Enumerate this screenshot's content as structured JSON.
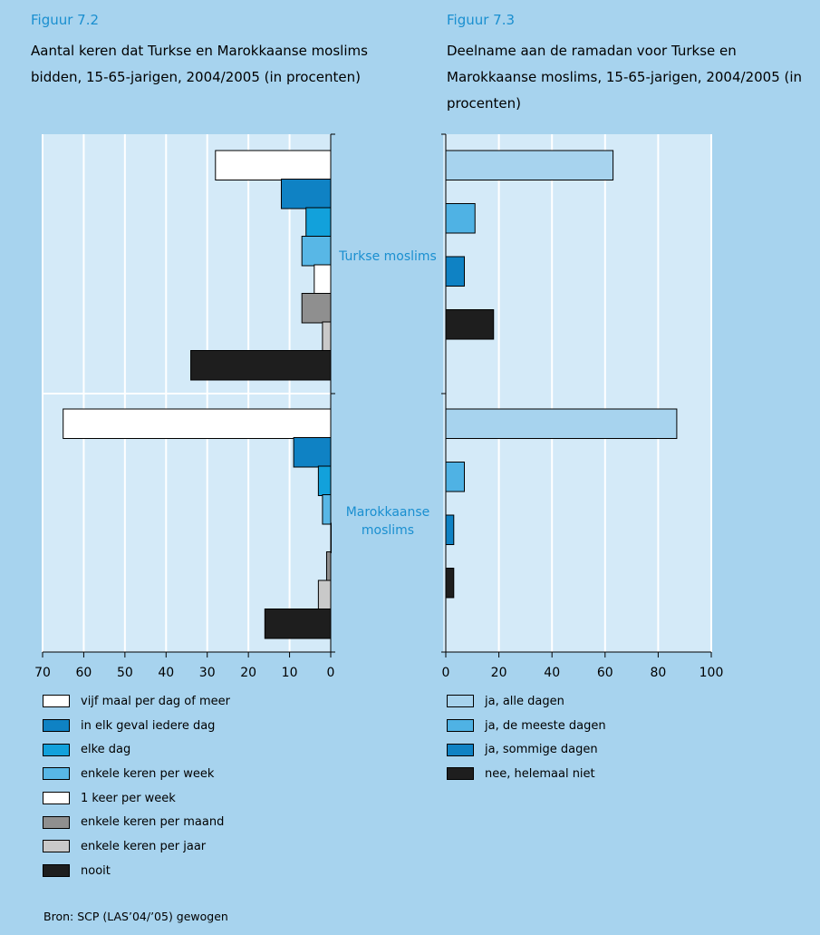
{
  "figure_left": {
    "label": "Figuur 7.2",
    "title": "Aantal keren dat Turkse en Marokkaanse moslims bidden, 15-65-jarigen, 2004/2005 (in procenten)"
  },
  "figure_right": {
    "label": "Figuur 7.3",
    "title": "Deelname aan de ramadan voor Turkse en Marokkaanse moslims, 15-65-jarigen, 2004/2005 (in procenten)"
  },
  "groups": {
    "turkish": "Turkse moslims",
    "moroccan": "Marokkaanse moslims"
  },
  "source": "Bron: SCP (LAS’04/’05) gewogen",
  "chart_data": [
    {
      "type": "bar",
      "orientation": "horizontal-reversed",
      "title": "Aantal keren dat Turkse en Marokkaanse moslims bidden, 15-65-jarigen, 2004/2005 (in procenten)",
      "categories": [
        "Turkse moslims",
        "Marokkaanse moslims"
      ],
      "xlim": [
        0,
        70
      ],
      "xticks": [
        70,
        60,
        50,
        40,
        30,
        20,
        10,
        0
      ],
      "grid": true,
      "legend_position": "bottom",
      "series": [
        {
          "name": "vijf maal per dag of meer",
          "color": "#ffffff",
          "values": [
            28,
            65
          ]
        },
        {
          "name": "in elk geval iedere dag",
          "color": "#0f82c4",
          "values": [
            12,
            9
          ]
        },
        {
          "name": "elke dag",
          "color": "#12a1db",
          "values": [
            6,
            3
          ]
        },
        {
          "name": "enkele keren per week",
          "color": "#58b7e6",
          "values": [
            7,
            2
          ]
        },
        {
          "name": "1 keer per week",
          "color": "#ffffff",
          "values": [
            4,
            0
          ]
        },
        {
          "name": "enkele keren per maand",
          "color": "#8f8f8f",
          "values": [
            7,
            1
          ]
        },
        {
          "name": "enkele keren per jaar",
          "color": "#c9c9c9",
          "values": [
            2,
            3
          ]
        },
        {
          "name": "nooit",
          "color": "#1e1e1e",
          "values": [
            34,
            16
          ]
        }
      ]
    },
    {
      "type": "bar",
      "orientation": "horizontal",
      "title": "Deelname aan de ramadan voor Turkse en Marokkaanse moslims, 15-65-jarigen, 2004/2005 (in procenten)",
      "categories": [
        "Turkse moslims",
        "Marokkaanse moslims"
      ],
      "xlim": [
        0,
        100
      ],
      "xticks": [
        0,
        20,
        40,
        60,
        80,
        100
      ],
      "grid": true,
      "legend_position": "bottom",
      "series": [
        {
          "name": "ja, alle dagen",
          "color": "#a7d3ee",
          "values": [
            63,
            87
          ]
        },
        {
          "name": "ja, de meeste dagen",
          "color": "#4fb2e4",
          "values": [
            11,
            7
          ]
        },
        {
          "name": "ja, sommige dagen",
          "color": "#0f82c4",
          "values": [
            7,
            3
          ]
        },
        {
          "name": "nee, helemaal niet",
          "color": "#1e1e1e",
          "values": [
            18,
            3
          ]
        }
      ]
    }
  ]
}
